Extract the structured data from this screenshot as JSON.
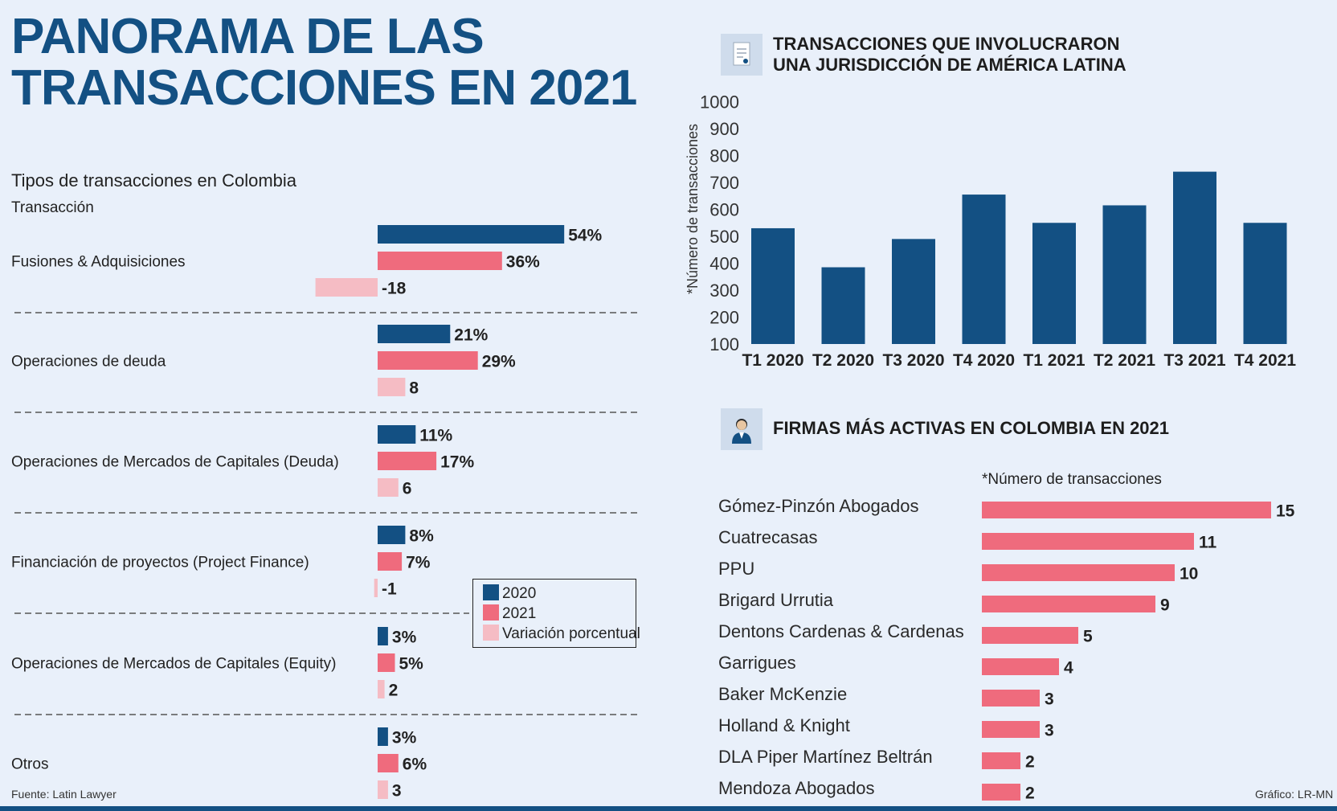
{
  "title": "PANORAMA DE LAS\nTRANSACCIONES EN 2021",
  "colors": {
    "y2020": "#135083",
    "y2021": "#ef6b7d",
    "variation": "#f5bcc4",
    "background": "#e9f0fa"
  },
  "left": {
    "subtitle": "Tipos de transacciones en Colombia",
    "column_header": "Transacción",
    "legend": [
      "2020",
      "2021",
      "Variación porcentual"
    ]
  },
  "right_top": {
    "title": "TRANSACCIONES QUE INVOLUCRARON\nUNA JURISDICCIÓN DE AMÉRICA LATINA",
    "icon": "document-icon"
  },
  "right_bottom": {
    "title": "FIRMAS MÁS ACTIVAS EN COLOMBIA EN 2021",
    "subtitle": "*Número de transacciones",
    "icon": "businessman-icon"
  },
  "footer": {
    "source": "Fuente: Latin Lawyer",
    "credit": "Gráfico: LR-MN"
  },
  "chart_data": [
    {
      "type": "bar",
      "orientation": "horizontal",
      "categories": [
        "Fusiones & Adquisiciones",
        "Operaciones de deuda",
        "Operaciones de Mercados de Capitales (Deuda)",
        "Financiación de proyectos (Project Finance)",
        "Operaciones de Mercados de Capitales (Equity)",
        "Otros"
      ],
      "series": [
        {
          "name": "2020",
          "values": [
            54,
            21,
            11,
            8,
            3,
            3
          ],
          "labels": [
            "54%",
            "21%",
            "11%",
            "8%",
            "3%",
            "3%"
          ]
        },
        {
          "name": "2021",
          "values": [
            36,
            29,
            17,
            7,
            5,
            6
          ],
          "labels": [
            "36%",
            "29%",
            "17%",
            "7%",
            "5%",
            "6%"
          ]
        },
        {
          "name": "Variación porcentual",
          "values": [
            -18,
            8,
            6,
            -1,
            2,
            3
          ],
          "labels": [
            "-18",
            "8",
            "6",
            "-1",
            "2",
            "3"
          ]
        }
      ],
      "legend_position": "bottom-right"
    },
    {
      "type": "bar",
      "categories": [
        "T1 2020",
        "T2 2020",
        "T3 2020",
        "T4 2020",
        "T1 2021",
        "T2 2021",
        "T3 2021",
        "T4 2021"
      ],
      "values": [
        530,
        385,
        490,
        655,
        550,
        615,
        740,
        550
      ],
      "ylabel": "*Número de transacciones",
      "yticks": [
        "100",
        "200",
        "300",
        "400",
        "500",
        "600",
        "700",
        "800",
        "900",
        "1000"
      ],
      "ylim": [
        100,
        1000
      ],
      "grid": false
    },
    {
      "type": "bar",
      "orientation": "horizontal",
      "categories": [
        "Gómez-Pinzón Abogados",
        "Cuatrecasas",
        "PPU",
        "Brigard Urrutia",
        "Dentons Cardenas & Cardenas",
        "Garrigues",
        "Baker McKenzie",
        "Holland & Knight",
        "DLA Piper Martínez Beltrán",
        "Mendoza Abogados"
      ],
      "values": [
        15,
        11,
        10,
        9,
        5,
        4,
        3,
        3,
        2,
        2
      ],
      "labels": [
        "15",
        "11",
        "10",
        "9",
        "5",
        "4",
        "3",
        "3",
        "2",
        "2"
      ]
    }
  ]
}
